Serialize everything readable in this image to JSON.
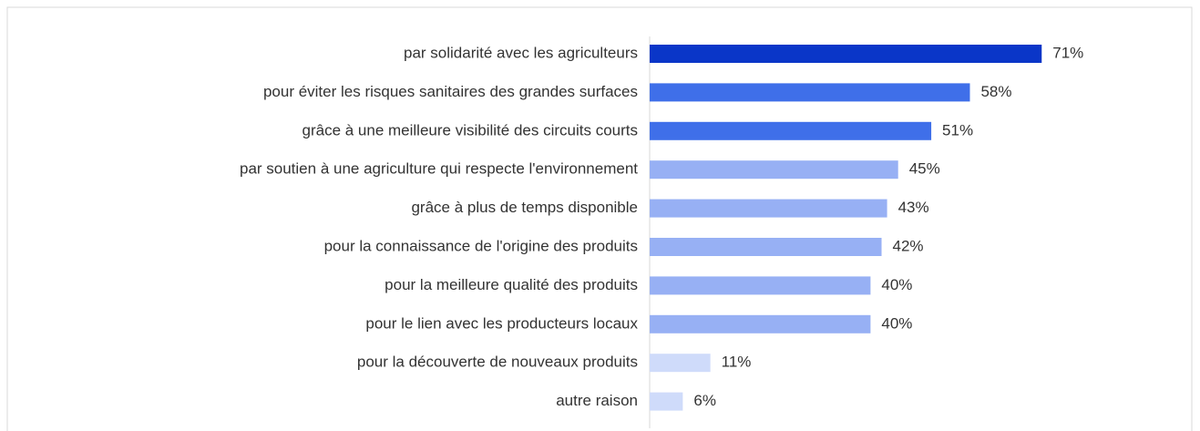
{
  "chart_data": {
    "type": "barh",
    "categories": [
      "par solidarité avec les agriculteurs",
      "pour éviter les risques sanitaires des grandes surfaces",
      "grâce à une meilleure visibilité des circuits courts",
      "par soutien à une agriculture qui respecte l'environnement",
      "grâce à plus de temps disponible",
      "pour la connaissance de l'origine des produits",
      "pour la meilleure qualité des produits",
      "pour le lien avec les producteurs locaux",
      "pour la découverte de nouveaux produits",
      "autre raison"
    ],
    "values": [
      71,
      58,
      51,
      45,
      43,
      42,
      40,
      40,
      11,
      6
    ],
    "value_labels": [
      "71%",
      "58%",
      "51%",
      "45%",
      "43%",
      "42%",
      "40%",
      "40%",
      "11%",
      "6%"
    ],
    "colors": [
      "#0a36c8",
      "#3f6fe9",
      "#3f6fe9",
      "#97b0f4",
      "#97b0f4",
      "#97b0f4",
      "#97b0f4",
      "#97b0f4",
      "#cfdbfa",
      "#cfdbfa"
    ]
  }
}
